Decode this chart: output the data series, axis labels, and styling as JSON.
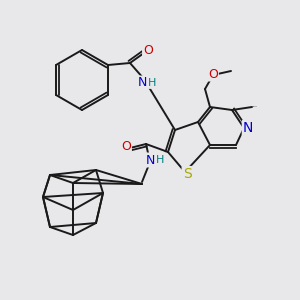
{
  "bg_color": "#e8e8eb",
  "atom_colors": {
    "C": "#000000",
    "N": "#0000cc",
    "O": "#cc0000",
    "S": "#aaaa00",
    "H": "#008080"
  },
  "bond_color": "#1a1a1a",
  "figsize": [
    3.0,
    3.0
  ],
  "dpi": 100
}
